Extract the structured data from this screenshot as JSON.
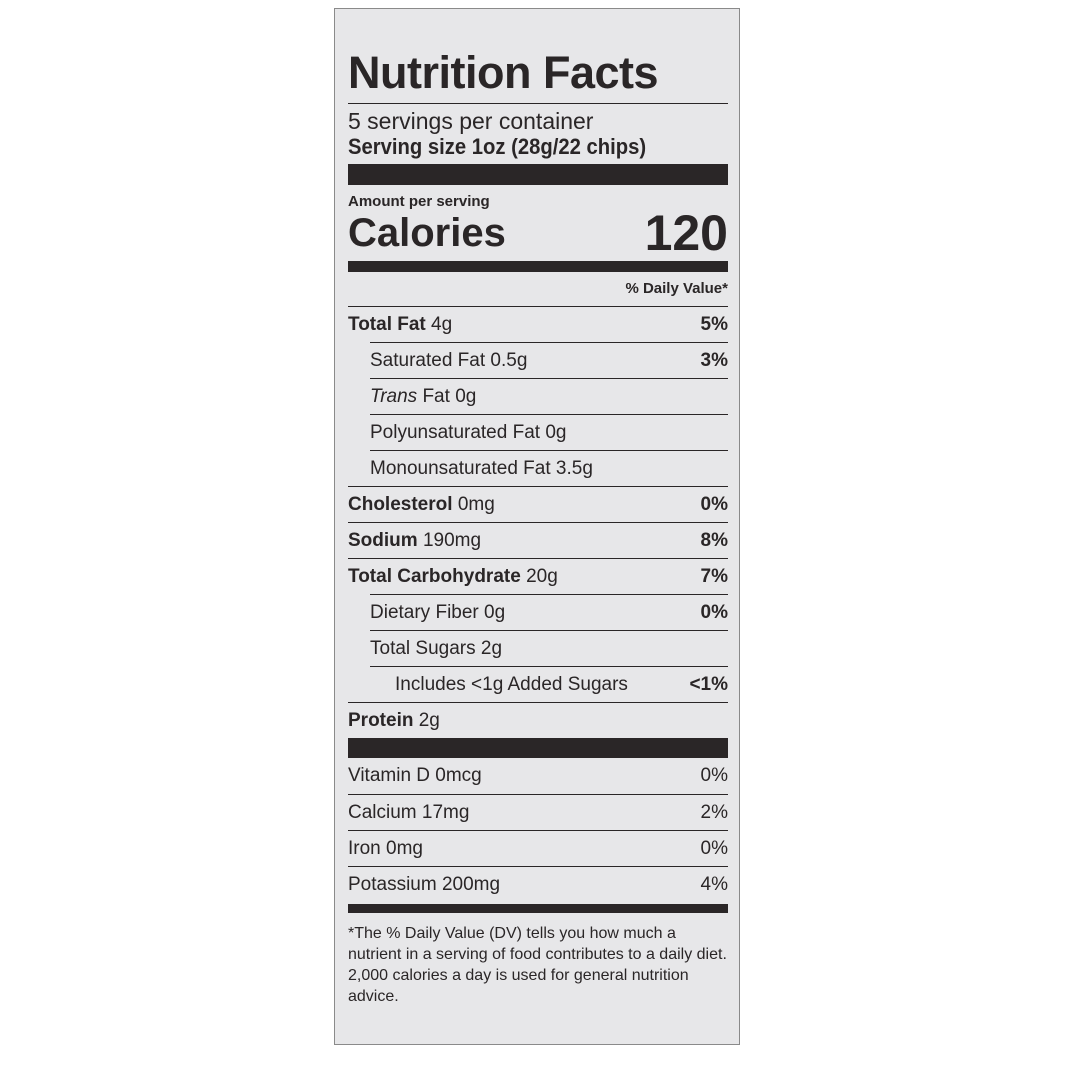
{
  "title": "Nutrition Facts",
  "servings_per_container": "5 servings per container",
  "serving_size": "Serving size 1oz (28g/22 chips)",
  "amount_per_serving": "Amount per serving",
  "calories": {
    "label": "Calories",
    "value": "120"
  },
  "daily_value_header": "% Daily Value*",
  "nutrients": [
    {
      "name": "Total Fat",
      "amount": "4g",
      "dv": "5%"
    },
    {
      "name": "Saturated Fat",
      "amount": "0.5g",
      "dv": "3%"
    },
    {
      "name": "Trans",
      "name_suffix": "Fat",
      "amount": "0g",
      "dv": ""
    },
    {
      "name": "Polyunsaturated Fat",
      "amount": "0g",
      "dv": ""
    },
    {
      "name": "Monounsaturated Fat",
      "amount": "3.5g",
      "dv": ""
    },
    {
      "name": "Cholesterol",
      "amount": "0mg",
      "dv": "0%"
    },
    {
      "name": "Sodium",
      "amount": "190mg",
      "dv": "8%"
    },
    {
      "name": "Total Carbohydrate",
      "amount": "20g",
      "dv": "7%"
    },
    {
      "name": "Dietary Fiber",
      "amount": "0g",
      "dv": "0%"
    },
    {
      "name": "Total Sugars",
      "amount": "2g",
      "dv": ""
    },
    {
      "name": "Includes <1g Added Sugars",
      "amount": "",
      "dv": "<1%"
    },
    {
      "name": "Protein",
      "amount": "2g",
      "dv": ""
    }
  ],
  "vitamins": [
    {
      "name": "Vitamin D 0mcg",
      "dv": "0%"
    },
    {
      "name": "Calcium 17mg",
      "dv": "2%"
    },
    {
      "name": "Iron 0mg",
      "dv": "0%"
    },
    {
      "name": "Potassium 200mg",
      "dv": "4%"
    }
  ],
  "footnote": "*The % Daily Value (DV) tells you how much a nutrient in a serving of food contributes to a daily diet. 2,000 calories a day is used for general nutrition advice."
}
